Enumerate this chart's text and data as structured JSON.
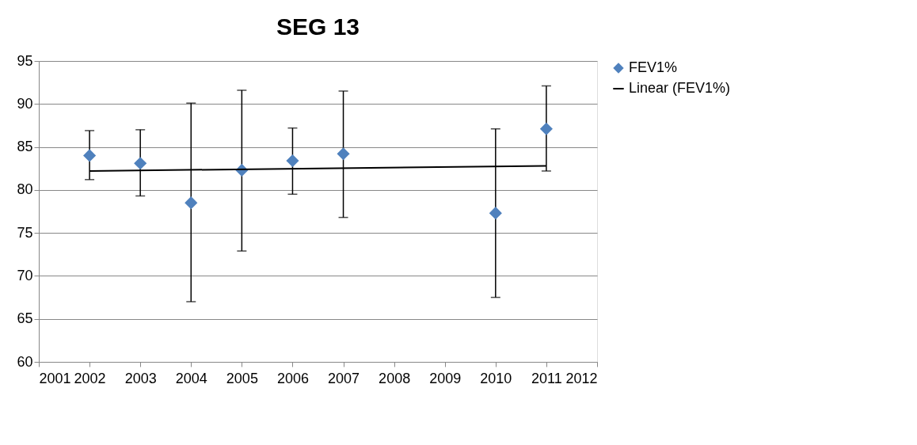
{
  "chart_data": {
    "type": "scatter",
    "title": "SEG 13",
    "x": [
      2002,
      2003,
      2004,
      2005,
      2006,
      2007,
      2010,
      2011
    ],
    "series": [
      {
        "name": "FEV1%",
        "type": "scatter",
        "marker": "diamond",
        "color": "#4f81bd",
        "values": [
          84.0,
          83.1,
          78.5,
          82.3,
          83.4,
          84.2,
          77.3,
          87.1
        ],
        "errors": [
          [
            81.2,
            86.9
          ],
          [
            79.3,
            87.0
          ],
          [
            67.0,
            90.1
          ],
          [
            72.9,
            91.6
          ],
          [
            79.5,
            87.2
          ],
          [
            76.8,
            91.5
          ],
          [
            67.5,
            87.1
          ],
          [
            82.2,
            92.1
          ]
        ]
      },
      {
        "name": "Linear (FEV1%)",
        "type": "line",
        "color": "#000000",
        "x": [
          2002,
          2011
        ],
        "values": [
          82.2,
          82.8
        ]
      }
    ],
    "xlim": [
      2001,
      2012
    ],
    "xticks": [
      2001,
      2002,
      2003,
      2004,
      2005,
      2006,
      2007,
      2008,
      2009,
      2010,
      2011,
      2012
    ],
    "ylim": [
      60,
      95
    ],
    "yticks": [
      60,
      65,
      70,
      75,
      80,
      85,
      90,
      95
    ],
    "grid": "y",
    "legend": "right"
  }
}
